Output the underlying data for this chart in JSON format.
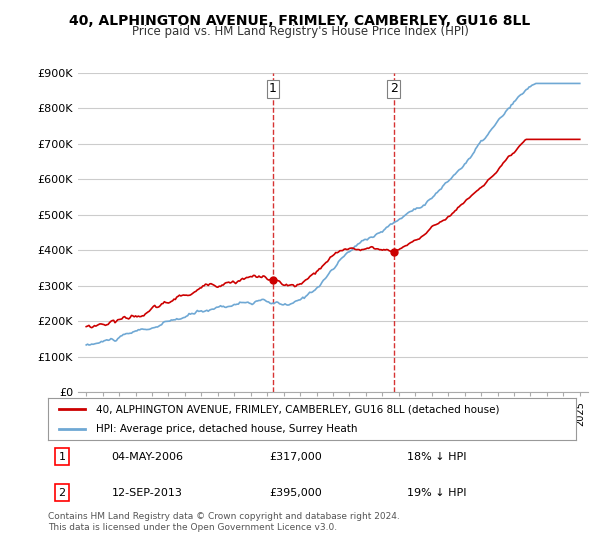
{
  "title": "40, ALPHINGTON AVENUE, FRIMLEY, CAMBERLEY, GU16 8LL",
  "subtitle": "Price paid vs. HM Land Registry's House Price Index (HPI)",
  "ylabel": "",
  "ylim": [
    0,
    900000
  ],
  "yticks": [
    0,
    100000,
    200000,
    300000,
    400000,
    500000,
    600000,
    700000,
    800000,
    900000
  ],
  "ytick_labels": [
    "£0",
    "£100K",
    "£200K",
    "£300K",
    "£400K",
    "£500K",
    "£600K",
    "£700K",
    "£800K",
    "£900K"
  ],
  "sale1_date_idx": 11.33,
  "sale1_price": 317000,
  "sale1_label": "1",
  "sale2_date_idx": 18.75,
  "sale2_price": 395000,
  "sale2_label": "2",
  "hpi_color": "#6fa8d4",
  "price_color": "#cc0000",
  "vline_color": "#cc0000",
  "background_color": "#ffffff",
  "grid_color": "#cccccc",
  "legend1": "40, ALPHINGTON AVENUE, FRIMLEY, CAMBERLEY, GU16 8LL (detached house)",
  "legend2": "HPI: Average price, detached house, Surrey Heath",
  "annotation1_date": "04-MAY-2006",
  "annotation1_price": "£317,000",
  "annotation1_hpi": "18% ↓ HPI",
  "annotation2_date": "12-SEP-2013",
  "annotation2_price": "£395,000",
  "annotation2_hpi": "19% ↓ HPI",
  "footer": "Contains HM Land Registry data © Crown copyright and database right 2024.\nThis data is licensed under the Open Government Licence v3.0."
}
